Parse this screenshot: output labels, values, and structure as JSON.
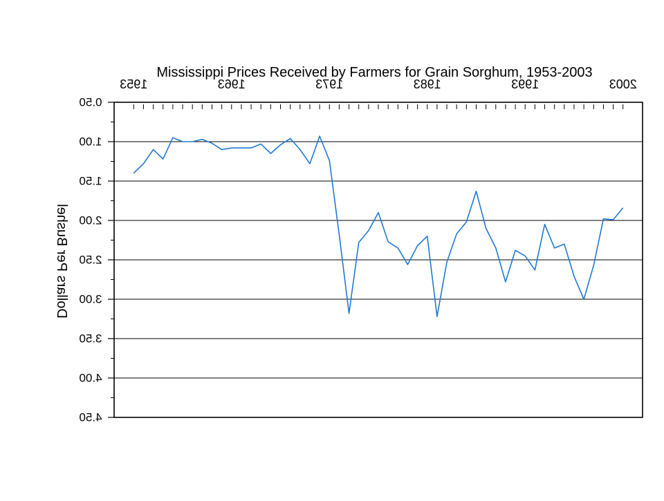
{
  "chart_data": {
    "type": "line",
    "title": "Mississippi Prices Received by Farmers for Grain Sorghum, 1953-2003",
    "xlabel": "",
    "ylabel": "Dollars Per Bushel",
    "x_tick_labels": [
      "1953",
      "1963",
      "1973",
      "1983",
      "1993",
      "2003"
    ],
    "y_tick_labels": [
      "0.50",
      "1.00",
      "1.50",
      "2.00",
      "2.50",
      "3.00",
      "3.50",
      "4.00",
      "4.50"
    ],
    "xlim": [
      1951,
      2005
    ],
    "ylim": [
      0.5,
      4.5
    ],
    "y_inverted": true,
    "mirrored_horizontally": true,
    "grid": "horizontal",
    "series": [
      {
        "color": "#1f78d2",
        "x": [
          1953,
          1954,
          1955,
          1956,
          1957,
          1958,
          1959,
          1960,
          1961,
          1962,
          1963,
          1964,
          1965,
          1966,
          1967,
          1968,
          1969,
          1970,
          1971,
          1972,
          1973,
          1974,
          1975,
          1976,
          1977,
          1978,
          1979,
          1980,
          1981,
          1982,
          1983,
          1984,
          1985,
          1986,
          1987,
          1988,
          1989,
          1990,
          1991,
          1992,
          1993,
          1994,
          1995,
          1996,
          1997,
          1998,
          1999,
          2000,
          2001,
          2002,
          2003
        ],
        "y": [
          1.4,
          1.28,
          1.1,
          1.22,
          0.95,
          1.0,
          1.0,
          0.97,
          1.02,
          1.1,
          1.08,
          1.08,
          1.08,
          1.03,
          1.15,
          1.04,
          0.96,
          1.1,
          1.28,
          0.93,
          1.24,
          2.18,
          3.18,
          2.28,
          2.13,
          1.9,
          2.27,
          2.35,
          2.56,
          2.32,
          2.2,
          3.22,
          2.53,
          2.17,
          2.02,
          1.63,
          2.1,
          2.35,
          2.78,
          2.38,
          2.45,
          2.63,
          2.05,
          2.35,
          2.3,
          2.71,
          3.0,
          2.57,
          1.98,
          1.99,
          1.84
        ]
      }
    ]
  }
}
